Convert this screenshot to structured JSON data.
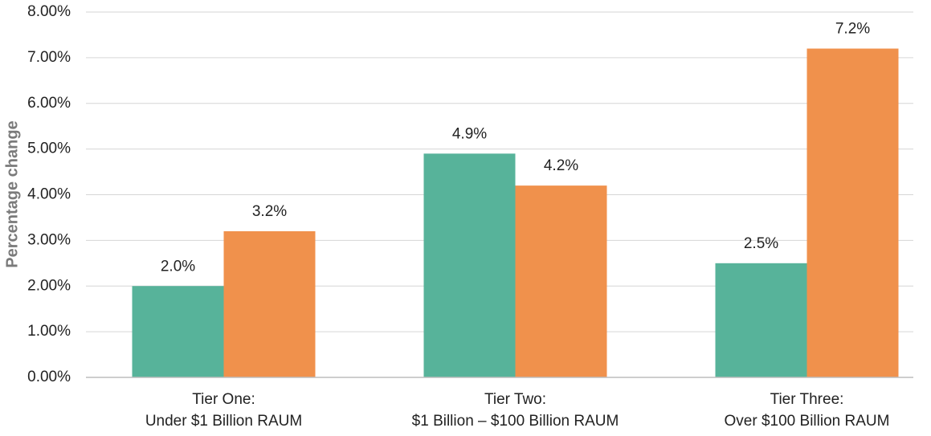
{
  "chart_data": {
    "type": "bar",
    "y_label": "Percentage change",
    "categories": [
      [
        "Tier One:",
        "Under $1 Billion RAUM"
      ],
      [
        "Tier Two:",
        "$1 Billion – $100 Billion RAUM"
      ],
      [
        "Tier Three:",
        "Over $100 Billion RAUM"
      ]
    ],
    "series": [
      {
        "color": "#57b39a",
        "values": [
          2.0,
          4.9,
          2.5
        ],
        "value_labels": [
          "2.0%",
          "4.9%",
          "2.5%"
        ]
      },
      {
        "color": "#f0914c",
        "values": [
          3.2,
          4.2,
          7.2
        ],
        "value_labels": [
          "3.2%",
          "4.2%",
          "7.2%"
        ]
      }
    ],
    "ylim": [
      0,
      8
    ],
    "yticks": [
      {
        "value": 0,
        "label": "0.00%"
      },
      {
        "value": 1,
        "label": "1.00%"
      },
      {
        "value": 2,
        "label": "2.00%"
      },
      {
        "value": 3,
        "label": "3.00%"
      },
      {
        "value": 4,
        "label": "4.00%"
      },
      {
        "value": 5,
        "label": "5.00%"
      },
      {
        "value": 6,
        "label": "6.00%"
      },
      {
        "value": 7,
        "label": "7.00%"
      },
      {
        "value": 8,
        "label": "8.00%"
      }
    ],
    "grid": true
  }
}
